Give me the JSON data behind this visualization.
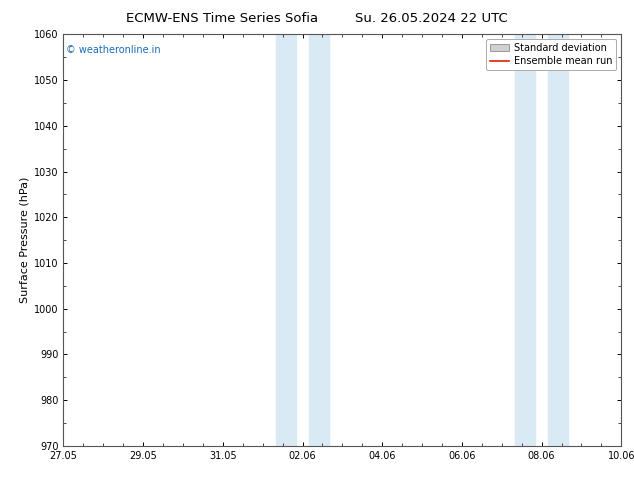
{
  "title_left": "ECMW-ENS Time Series Sofia",
  "title_right": "Su. 26.05.2024 22 UTC",
  "ylabel": "Surface Pressure (hPa)",
  "ylim": [
    970,
    1060
  ],
  "yticks": [
    970,
    980,
    990,
    1000,
    1010,
    1020,
    1030,
    1040,
    1050,
    1060
  ],
  "xtick_labels": [
    "27.05",
    "29.05",
    "31.05",
    "02.06",
    "04.06",
    "06.06",
    "08.06",
    "10.06"
  ],
  "xtick_positions": [
    0,
    2,
    4,
    6,
    8,
    10,
    12,
    14
  ],
  "shaded_regions": [
    {
      "x_start": 5.33,
      "x_end": 5.83
    },
    {
      "x_start": 6.17,
      "x_end": 6.67
    },
    {
      "x_start": 11.33,
      "x_end": 11.83
    },
    {
      "x_start": 12.17,
      "x_end": 12.67
    }
  ],
  "shaded_color": "#daeaf5",
  "watermark_text": "© weatheronline.in",
  "watermark_color": "#1a6bb5",
  "legend_std_label": "Standard deviation",
  "legend_mean_label": "Ensemble mean run",
  "legend_std_color": "#d0d0d0",
  "legend_std_edge": "#999999",
  "legend_mean_color": "#dd2200",
  "bg_color": "#ffffff",
  "spine_color": "#555555",
  "title_fontsize": 9.5,
  "tick_fontsize": 7,
  "ylabel_fontsize": 8,
  "legend_fontsize": 7
}
